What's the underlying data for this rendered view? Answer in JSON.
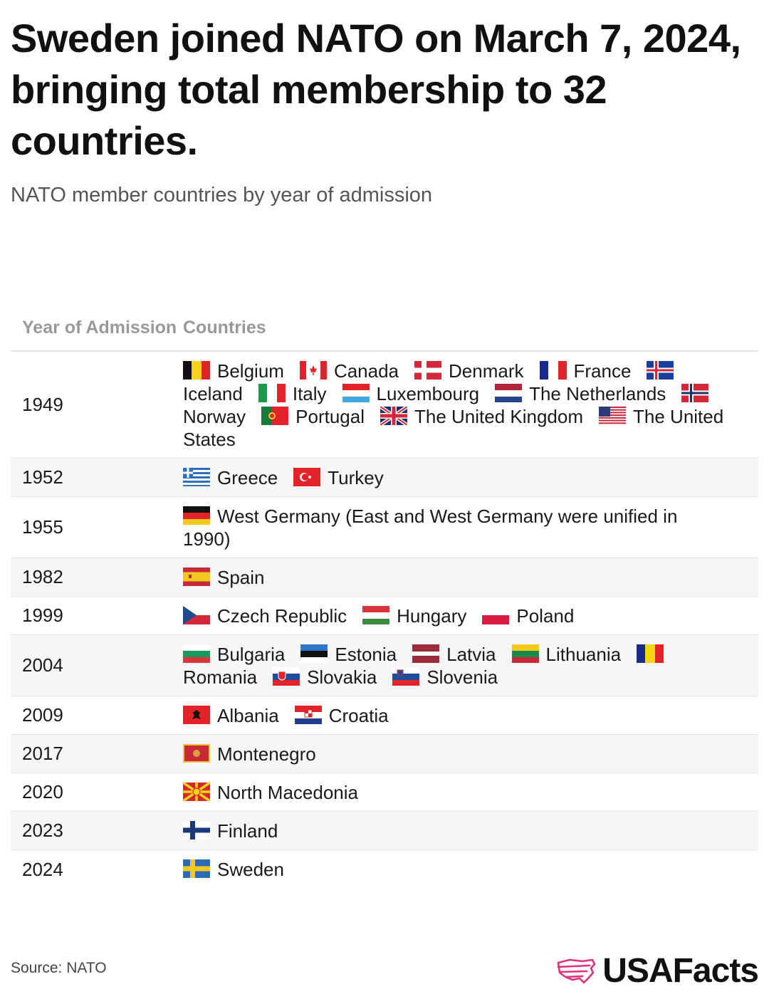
{
  "title": "Sweden joined NATO on March 7, 2024, bringing total membership to 32 countries.",
  "subtitle": "NATO member countries by year of admission",
  "columns": {
    "year": "Year of Admission",
    "countries": "Countries"
  },
  "source": "Source: NATO",
  "brand": "USAFacts",
  "colors": {
    "brand_accent": "#e0327a",
    "header_text": "#999999",
    "row_alt": "#f6f6f6"
  },
  "chart_data": {
    "type": "table",
    "columns": [
      "Year of Admission",
      "Countries"
    ],
    "rows": [
      {
        "year": "1949",
        "countries": [
          {
            "name": "Belgium",
            "flag": "be"
          },
          {
            "name": "Canada",
            "flag": "ca"
          },
          {
            "name": "Denmark",
            "flag": "dk"
          },
          {
            "name": "France",
            "flag": "fr"
          },
          {
            "name": "Iceland",
            "flag": "is"
          },
          {
            "name": "Italy",
            "flag": "it"
          },
          {
            "name": "Luxembourg",
            "flag": "lu"
          },
          {
            "name": "The Netherlands",
            "flag": "nl"
          },
          {
            "name": "Norway",
            "flag": "no"
          },
          {
            "name": "Portugal",
            "flag": "pt"
          },
          {
            "name": "The United Kingdom",
            "flag": "gb"
          },
          {
            "name": "The United States",
            "flag": "us"
          }
        ]
      },
      {
        "year": "1952",
        "countries": [
          {
            "name": "Greece",
            "flag": "gr"
          },
          {
            "name": "Turkey",
            "flag": "tr"
          }
        ]
      },
      {
        "year": "1955",
        "countries": [
          {
            "name": "West Germany (East and West Germany were unified in 1990)",
            "flag": "de"
          }
        ]
      },
      {
        "year": "1982",
        "countries": [
          {
            "name": "Spain",
            "flag": "es"
          }
        ]
      },
      {
        "year": "1999",
        "countries": [
          {
            "name": "Czech Republic",
            "flag": "cz"
          },
          {
            "name": "Hungary",
            "flag": "hu"
          },
          {
            "name": "Poland",
            "flag": "pl"
          }
        ]
      },
      {
        "year": "2004",
        "countries": [
          {
            "name": "Bulgaria",
            "flag": "bg"
          },
          {
            "name": "Estonia",
            "flag": "ee"
          },
          {
            "name": "Latvia",
            "flag": "lv"
          },
          {
            "name": "Lithuania",
            "flag": "lt"
          },
          {
            "name": "Romania",
            "flag": "ro"
          },
          {
            "name": "Slovakia",
            "flag": "sk"
          },
          {
            "name": "Slovenia",
            "flag": "si"
          }
        ]
      },
      {
        "year": "2009",
        "countries": [
          {
            "name": "Albania",
            "flag": "al"
          },
          {
            "name": "Croatia",
            "flag": "hr"
          }
        ]
      },
      {
        "year": "2017",
        "countries": [
          {
            "name": "Montenegro",
            "flag": "me"
          }
        ]
      },
      {
        "year": "2020",
        "countries": [
          {
            "name": "North Macedonia",
            "flag": "mk"
          }
        ]
      },
      {
        "year": "2023",
        "countries": [
          {
            "name": "Finland",
            "flag": "fi"
          }
        ]
      },
      {
        "year": "2024",
        "countries": [
          {
            "name": "Sweden",
            "flag": "se"
          }
        ]
      }
    ]
  }
}
